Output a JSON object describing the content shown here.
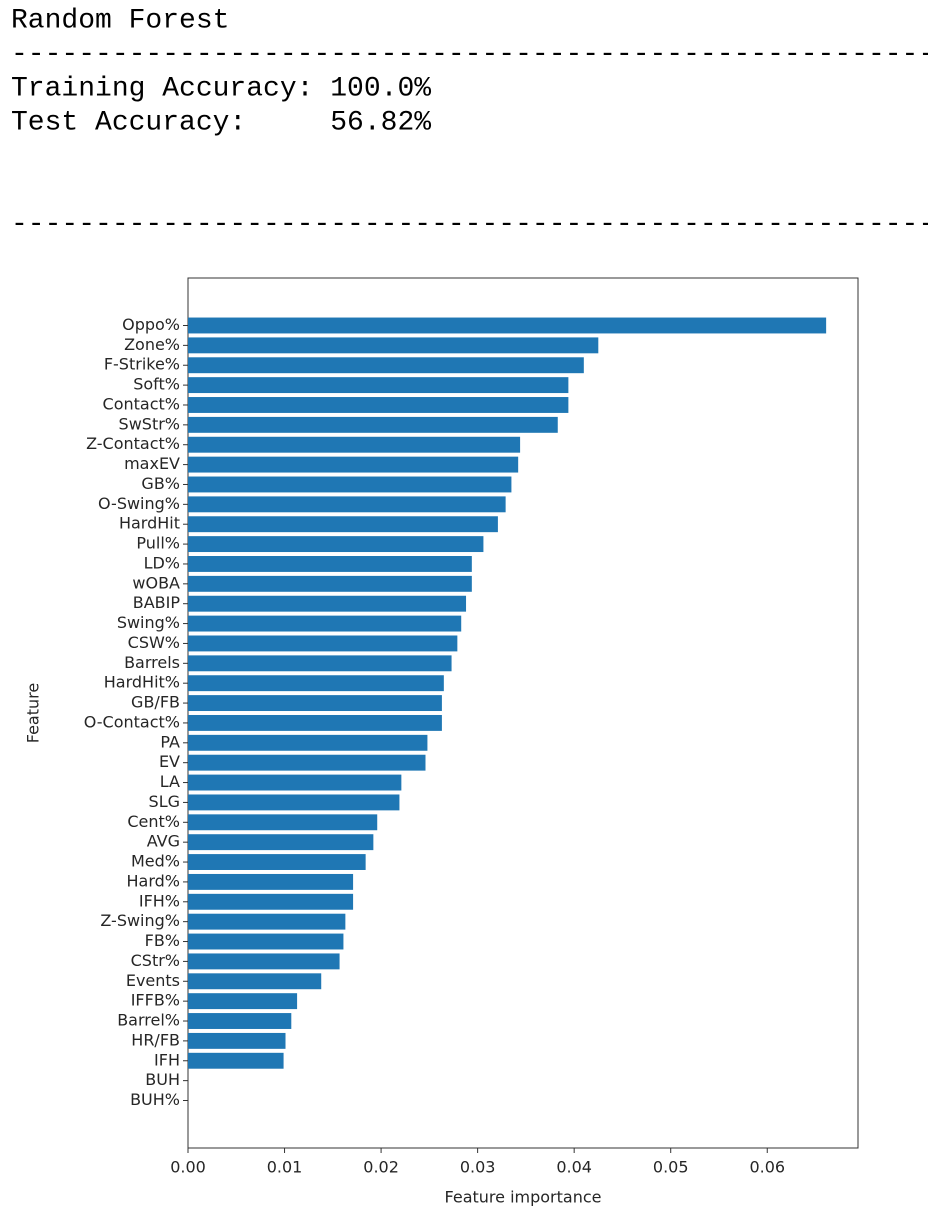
{
  "output": {
    "lines": [
      "Random Forest",
      "--------------------------------------------------------",
      "Training Accuracy: 100.0%",
      "Test Accuracy:     56.82%",
      "--------------------------------------------------------"
    ]
  },
  "chart_data": {
    "type": "barh",
    "xlabel": "Feature importance",
    "ylabel": "Feature",
    "color": "#1f77b4",
    "categories": [
      "Oppo%",
      "Zone%",
      "F-Strike%",
      "Soft%",
      "Contact%",
      "SwStr%",
      "Z-Contact%",
      "maxEV",
      "GB%",
      "O-Swing%",
      "HardHit",
      "Pull%",
      "LD%",
      "wOBA",
      "BABIP",
      "Swing%",
      "CSW%",
      "Barrels",
      "HardHit%",
      "GB/FB",
      "O-Contact%",
      "PA",
      "EV",
      "LA",
      "SLG",
      "Cent%",
      "AVG",
      "Med%",
      "Hard%",
      "IFH%",
      "Z-Swing%",
      "FB%",
      "CStr%",
      "Events",
      "IFFB%",
      "Barrel%",
      "HR/FB",
      "IFH",
      "BUH",
      "BUH%"
    ],
    "values": [
      0.0661,
      0.0425,
      0.041,
      0.0394,
      0.0394,
      0.0383,
      0.0344,
      0.0342,
      0.0335,
      0.0329,
      0.0321,
      0.0306,
      0.0294,
      0.0294,
      0.0288,
      0.0283,
      0.0279,
      0.0273,
      0.0265,
      0.0263,
      0.0263,
      0.0248,
      0.0246,
      0.0221,
      0.0219,
      0.0196,
      0.0192,
      0.0184,
      0.0171,
      0.0171,
      0.0163,
      0.0161,
      0.0157,
      0.0138,
      0.0113,
      0.0107,
      0.0101,
      0.0099,
      0,
      0
    ],
    "xlim": [
      0,
      0.0694
    ],
    "xticks": [
      {
        "value": 0,
        "label": "0.00"
      },
      0.01,
      0.02,
      0.03,
      0.04,
      0.05,
      0.06
    ]
  }
}
